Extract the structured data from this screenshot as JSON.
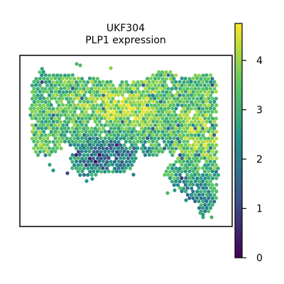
{
  "chart_data": {
    "type": "scatter",
    "title": "UKF304",
    "subtitle": "PLP1 expression",
    "xlabel": "",
    "ylabel": "",
    "grid": false,
    "colormap": "viridis",
    "colorbar": {
      "min": 0,
      "max": 4.75,
      "ticks": [
        0,
        1,
        2,
        3,
        4
      ],
      "tick_labels": [
        "0",
        "1",
        "2",
        "3",
        "4"
      ],
      "colors": [
        "#440154",
        "#3b528b",
        "#21918c",
        "#5ec962",
        "#fde725"
      ]
    }
  }
}
